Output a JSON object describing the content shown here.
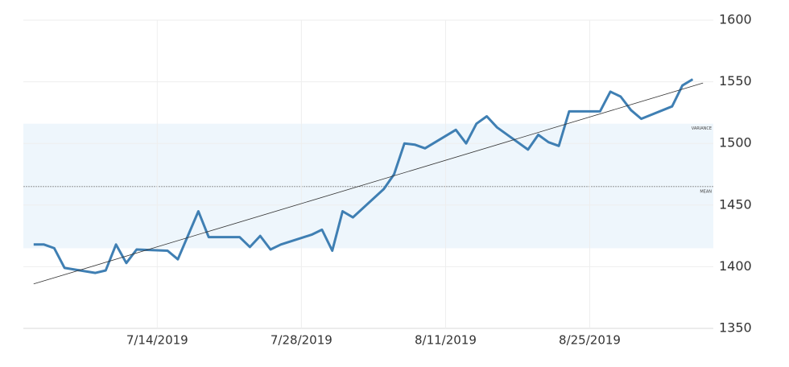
{
  "chart_data": {
    "type": "line",
    "x": [
      "7/2/2019",
      "7/3/2019",
      "7/4/2019",
      "7/5/2019",
      "7/8/2019",
      "7/9/2019",
      "7/10/2019",
      "7/11/2019",
      "7/12/2019",
      "7/15/2019",
      "7/16/2019",
      "7/18/2019",
      "7/19/2019",
      "7/22/2019",
      "7/23/2019",
      "7/24/2019",
      "7/25/2019",
      "7/26/2019",
      "7/29/2019",
      "7/30/2019",
      "7/31/2019",
      "8/1/2019",
      "8/2/2019",
      "8/5/2019",
      "8/6/2019",
      "8/7/2019",
      "8/8/2019",
      "8/9/2019",
      "8/12/2019",
      "8/13/2019",
      "8/14/2019",
      "8/15/2019",
      "8/16/2019",
      "8/19/2019",
      "8/20/2019",
      "8/21/2019",
      "8/22/2019",
      "8/23/2019",
      "8/26/2019",
      "8/27/2019",
      "8/28/2019",
      "8/29/2019",
      "8/30/2019",
      "9/2/2019",
      "9/3/2019",
      "9/4/2019"
    ],
    "series": [
      {
        "color": "#3f7fb3",
        "values": [
          1418,
          1418,
          1415,
          1399,
          1395,
          1397,
          1418,
          1403,
          1414,
          1413,
          1406,
          1445,
          1424,
          1424,
          1416,
          1425,
          1414,
          1418,
          1426,
          1430,
          1413,
          1445,
          1440,
          1463,
          1475,
          1500,
          1499,
          1496,
          1511,
          1500,
          1516,
          1522,
          1513,
          1495,
          1507,
          1501,
          1498,
          1526,
          1526,
          1542,
          1538,
          1527,
          1520,
          1530,
          1547,
          1552
        ]
      }
    ],
    "trend": {
      "x": [
        "7/2/2019",
        "9/5/2019"
      ],
      "values": [
        1386,
        1549
      ],
      "color": "#333333"
    },
    "bands": [
      {
        "label": "VARIANCE",
        "range": [
          1415,
          1516
        ],
        "color": "#eef6fc"
      },
      {
        "label": "MEAN",
        "value": 1465,
        "color": "#888888"
      }
    ],
    "xlim": [
      "7/1/2019",
      "9/6/2019"
    ],
    "xticks": [
      "7/14/2019",
      "7/28/2019",
      "8/11/2019",
      "8/25/2019"
    ],
    "ylim": [
      1350,
      1600
    ],
    "yticks": [
      1350,
      1400,
      1450,
      1500,
      1550,
      1600
    ],
    "grid": true
  }
}
